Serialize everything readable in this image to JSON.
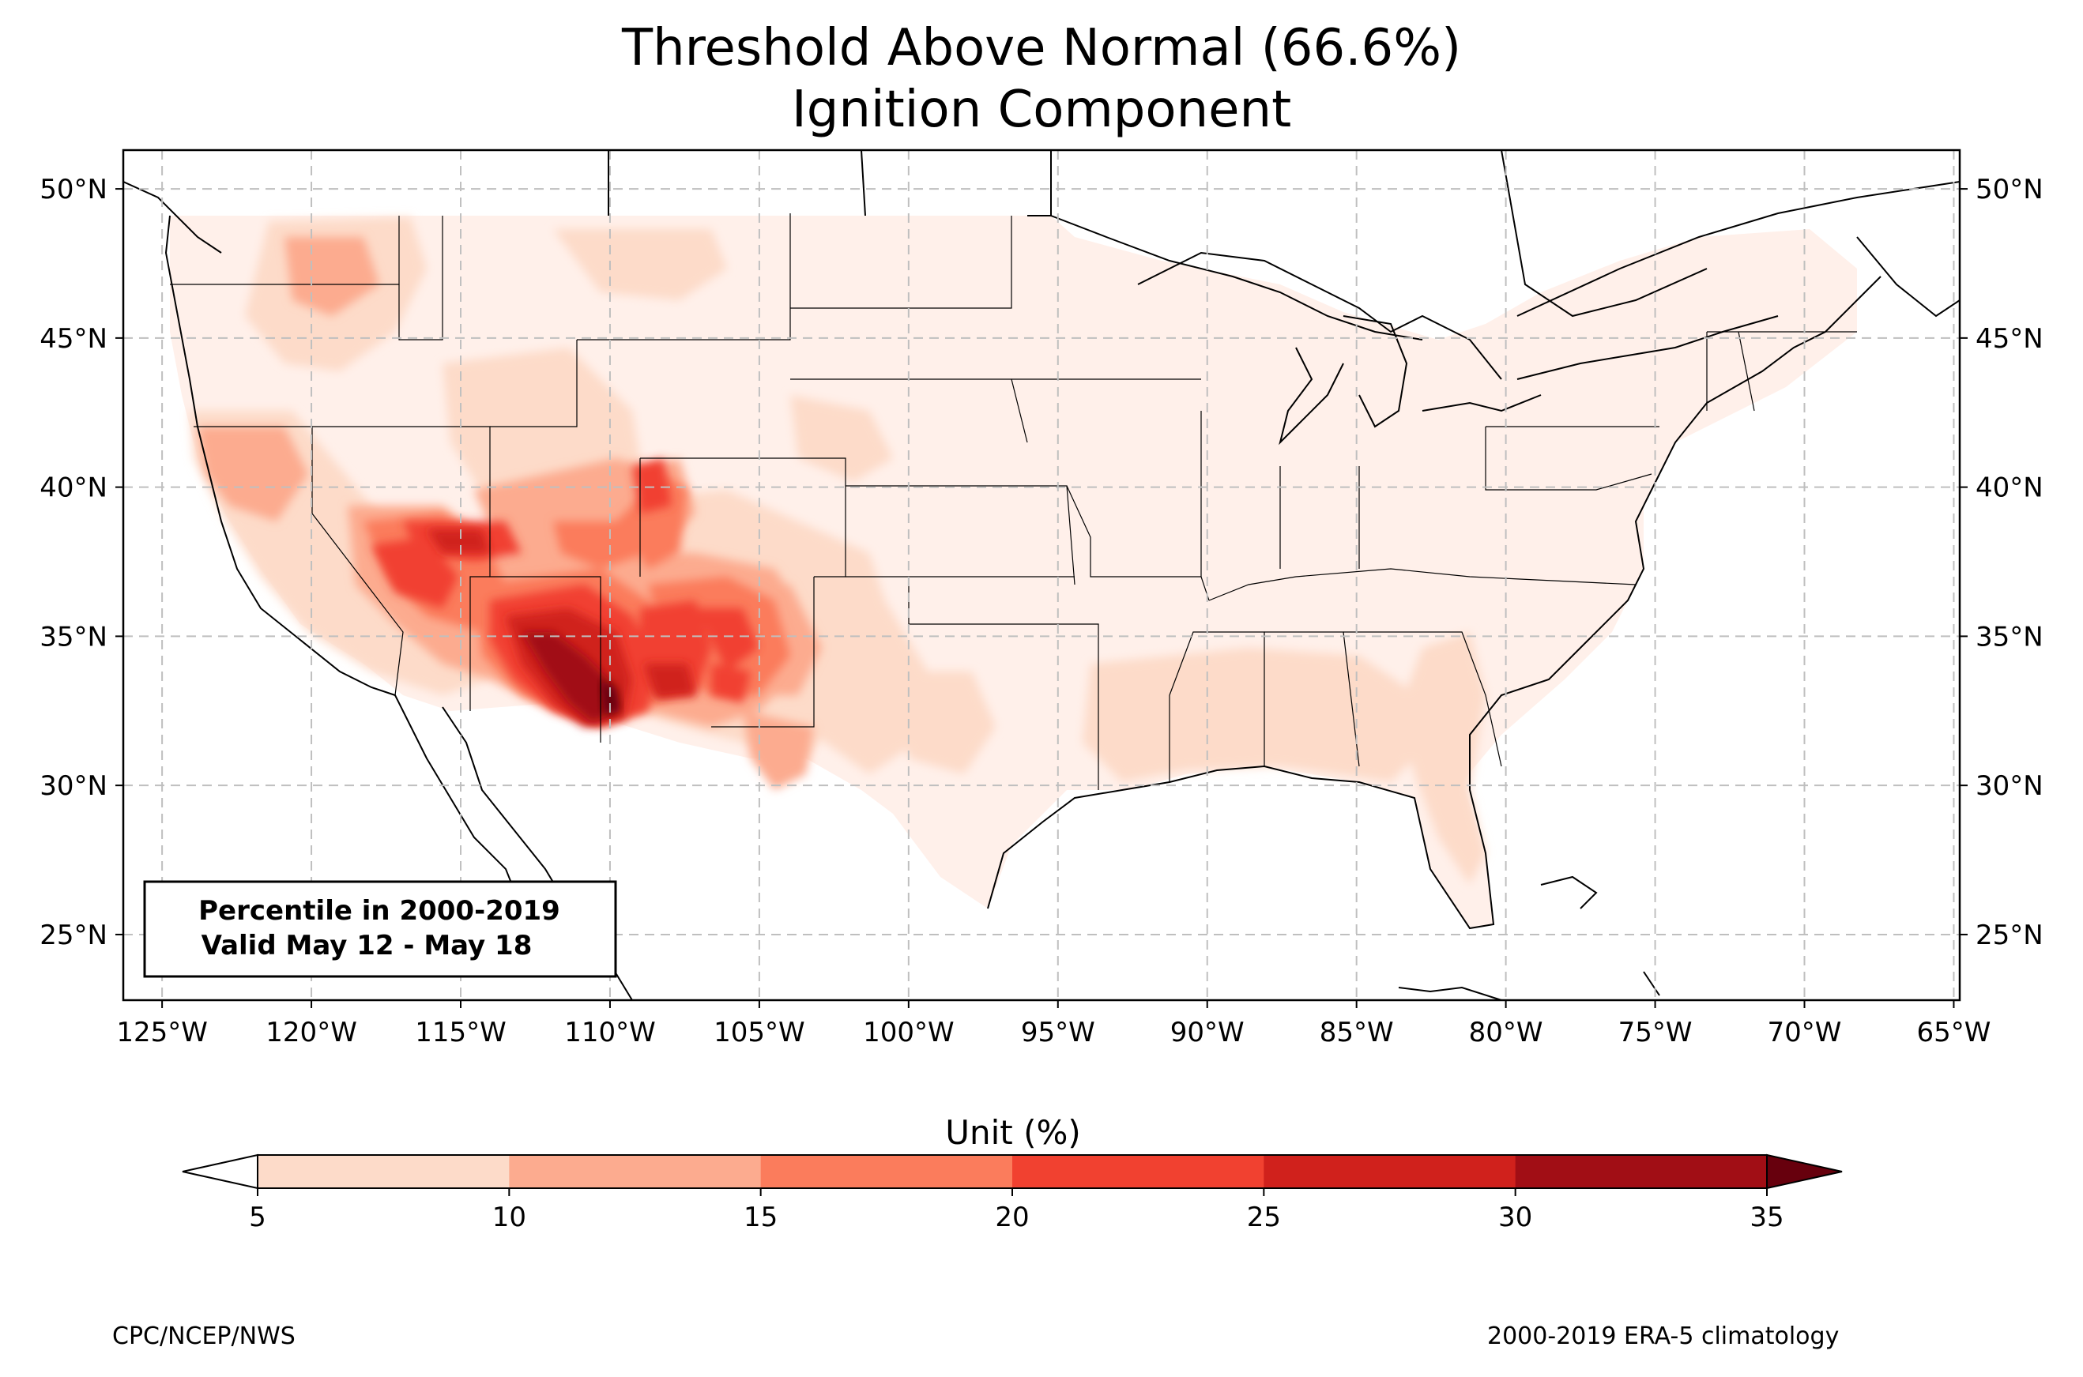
{
  "title": "Threshold Above Normal (66.6%)",
  "subtitle": "Ignition Component",
  "map": {
    "lon_range": [
      -126.3,
      -64.8
    ],
    "lat_range": [
      22.8,
      51.3
    ],
    "lon_ticks": [
      {
        "value": -125,
        "label": "125°W"
      },
      {
        "value": -120,
        "label": "120°W"
      },
      {
        "value": -115,
        "label": "115°W"
      },
      {
        "value": -110,
        "label": "110°W"
      },
      {
        "value": -105,
        "label": "105°W"
      },
      {
        "value": -100,
        "label": "100°W"
      },
      {
        "value": -95,
        "label": "95°W"
      },
      {
        "value": -90,
        "label": "90°W"
      },
      {
        "value": -85,
        "label": "85°W"
      },
      {
        "value": -80,
        "label": "80°W"
      },
      {
        "value": -75,
        "label": "75°W"
      },
      {
        "value": -70,
        "label": "70°W"
      },
      {
        "value": -65,
        "label": "65°W"
      }
    ],
    "lat_ticks": [
      {
        "value": 50,
        "label": "50°N"
      },
      {
        "value": 45,
        "label": "45°N"
      },
      {
        "value": 40,
        "label": "40°N"
      },
      {
        "value": 35,
        "label": "35°N"
      },
      {
        "value": 30,
        "label": "30°N"
      },
      {
        "value": 25,
        "label": "25°N"
      }
    ],
    "info_box": [
      "Percentile in 2000-2019",
      "Valid May 12 - May 18"
    ],
    "grid": true
  },
  "colorbar": {
    "label": "Unit (%)",
    "ticks": [
      "5",
      "10",
      "15",
      "20",
      "25",
      "30",
      "35"
    ],
    "colors": [
      "#fddbc9",
      "#fcab8f",
      "#fb7c5c",
      "#f14130",
      "#d0211c",
      "#a10e15"
    ],
    "under_color": "#ffffff",
    "over_color": "#67000d"
  },
  "footer": {
    "left": "CPC/NCEP/NWS",
    "right": "2000-2019 ERA-5 climatology"
  }
}
